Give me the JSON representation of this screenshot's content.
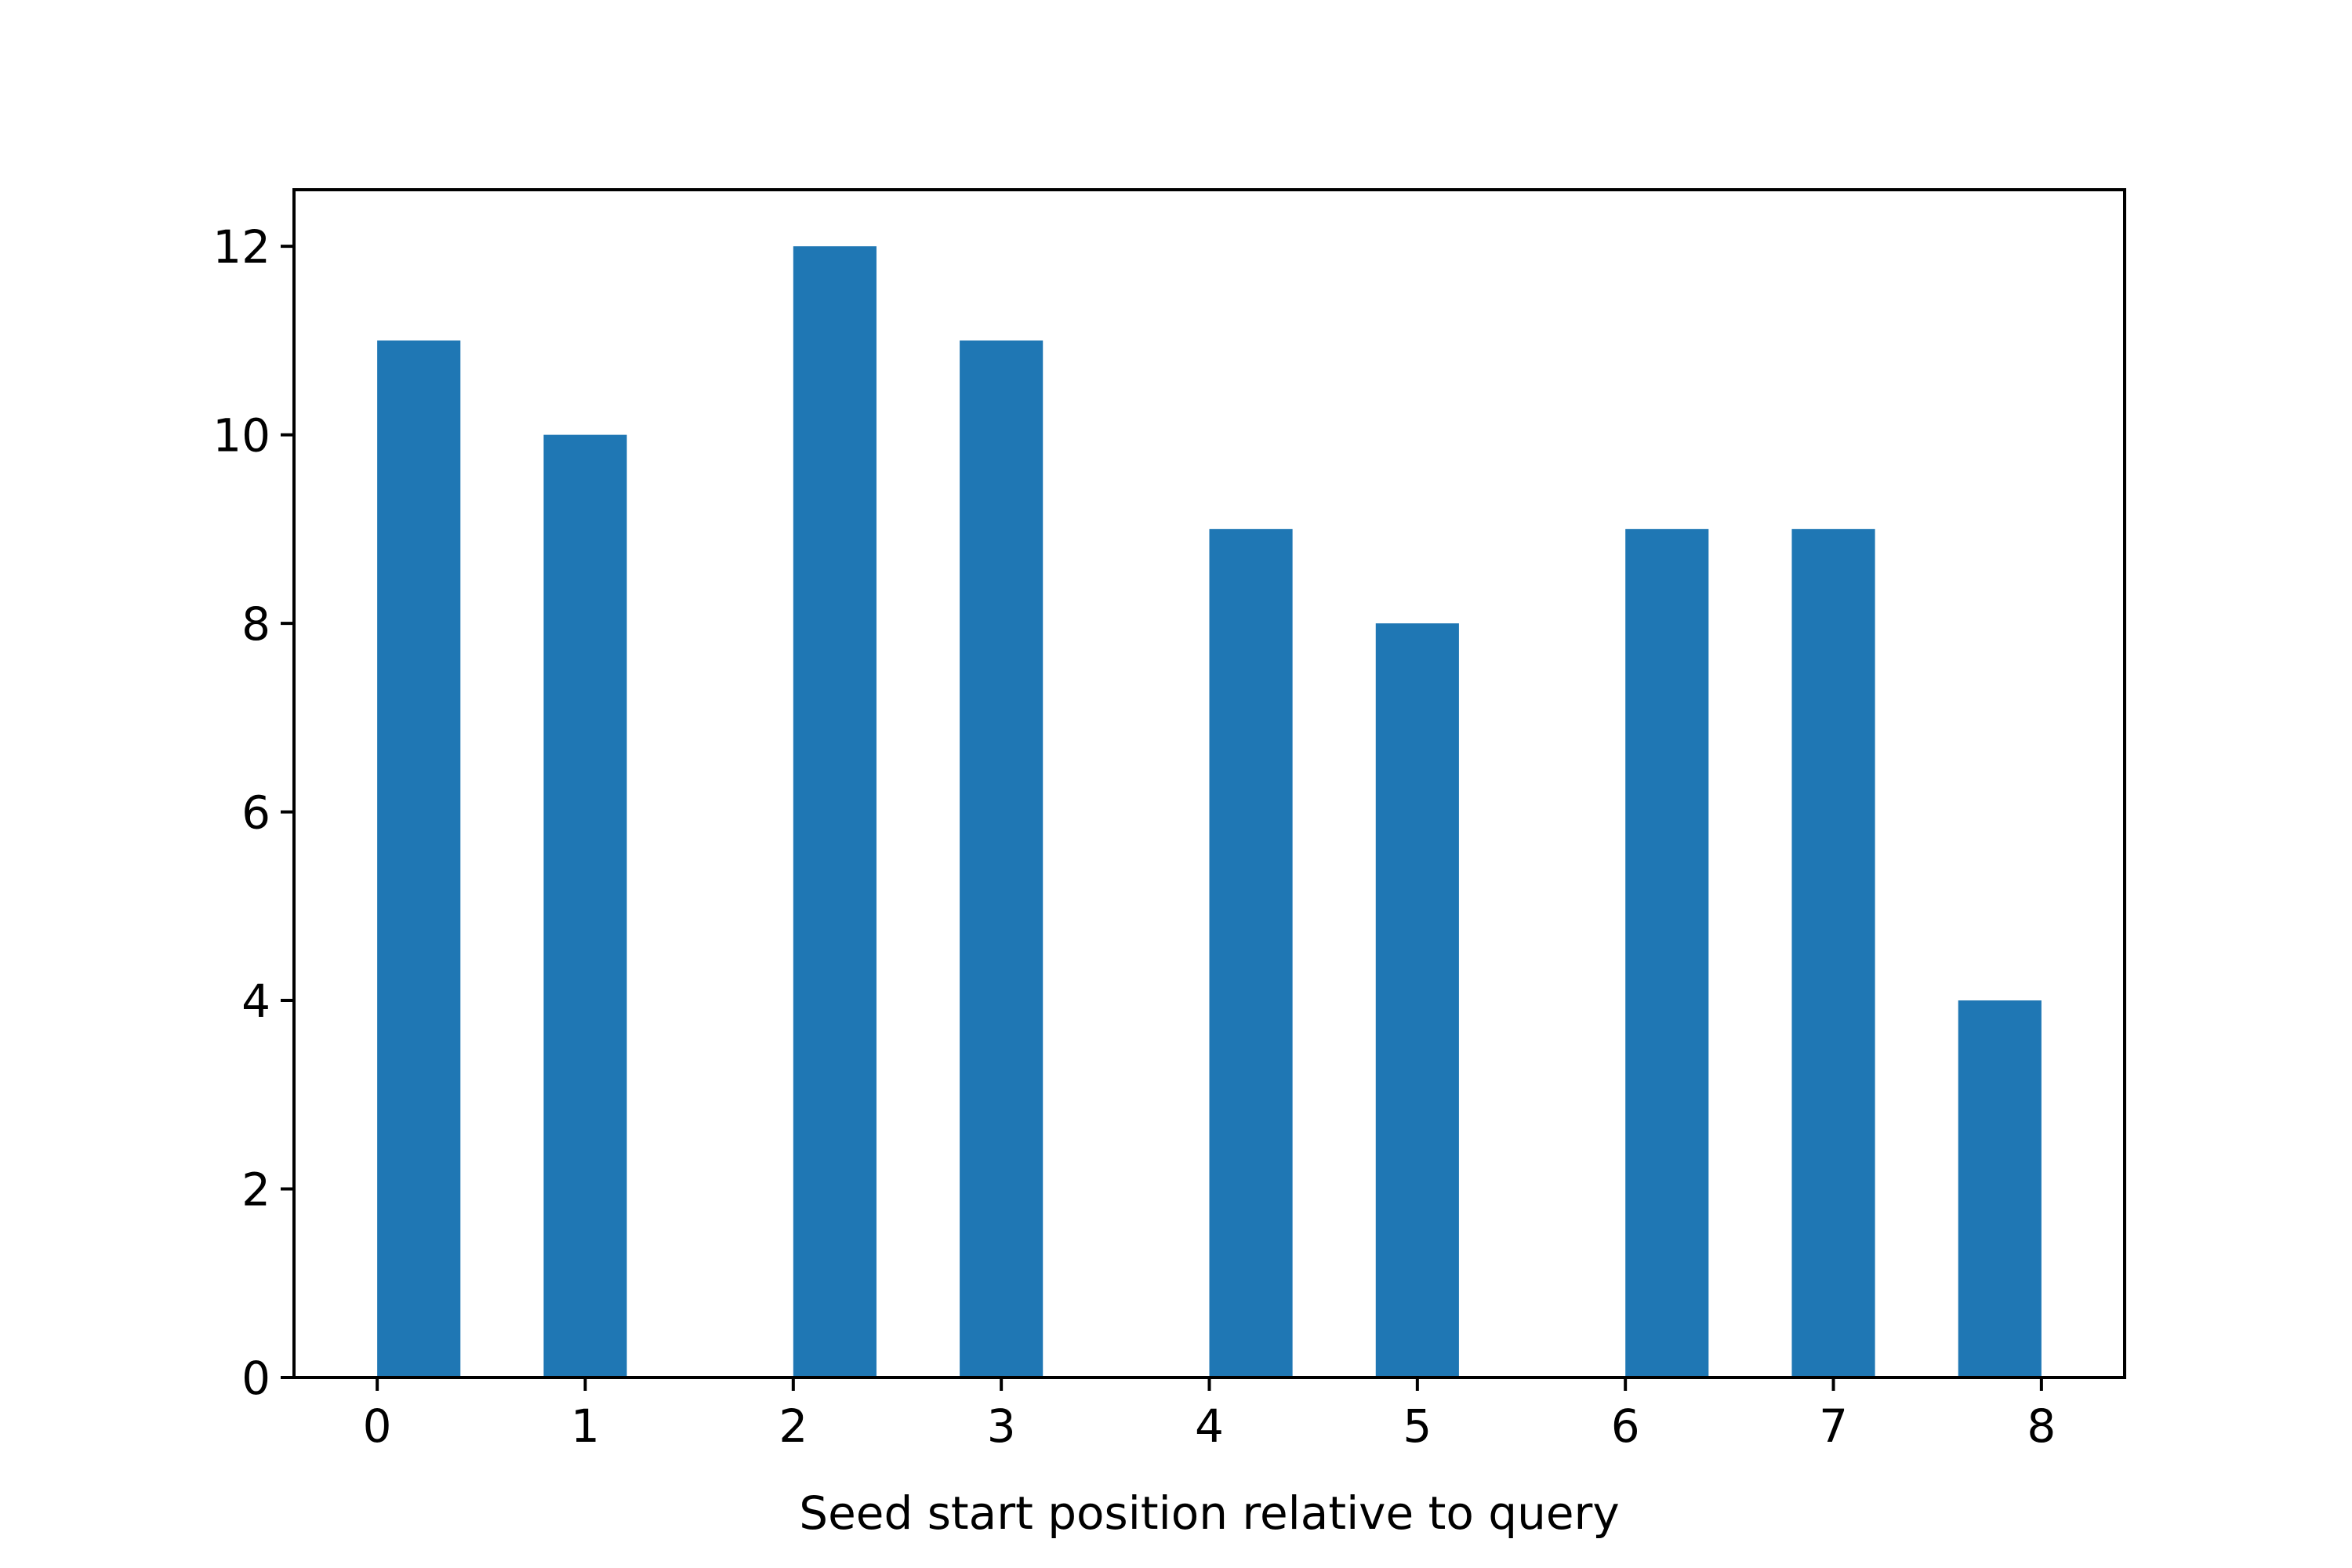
{
  "chart_data": {
    "type": "bar",
    "title": "",
    "xlabel": "Seed start position relative to query",
    "ylabel": "",
    "series": [
      {
        "x": [
          0.2,
          1.0,
          2.2,
          3.0,
          4.2,
          5.0,
          6.2,
          7.0,
          7.8
        ],
        "values": [
          11,
          10,
          12,
          11,
          9,
          8,
          9,
          9,
          4
        ],
        "bar_width": 0.4
      }
    ],
    "xlim": [
      -0.4,
      8.4
    ],
    "ylim": [
      0,
      12.6
    ],
    "xticks": [
      0,
      1,
      2,
      3,
      4,
      5,
      6,
      7,
      8
    ],
    "yticks": [
      0,
      2,
      4,
      6,
      8,
      10,
      12
    ],
    "grid": false,
    "legend": "none",
    "colors": {
      "bar": "#1f77b4",
      "axes": "#000000"
    }
  }
}
